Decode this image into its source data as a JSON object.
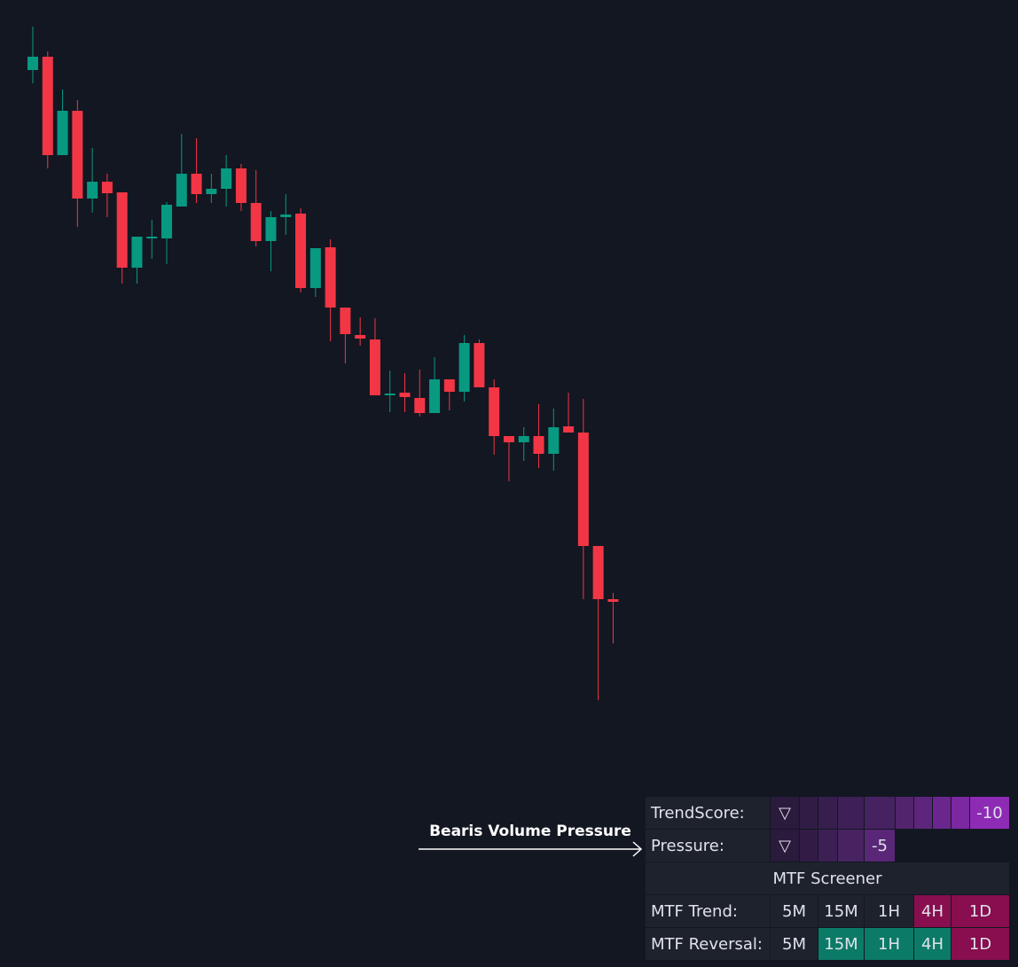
{
  "chart_data": {
    "type": "candlestick",
    "open": [
      1021,
      1036,
      925,
      975,
      876,
      895,
      883,
      798,
      832,
      831,
      867,
      904,
      881,
      887,
      910,
      871,
      828,
      855,
      859,
      775,
      821,
      753,
      722,
      717,
      654,
      657,
      651,
      634,
      672,
      658,
      713,
      663,
      608,
      601,
      608,
      588,
      619,
      612,
      484,
      424
    ],
    "high": [
      1070,
      1042,
      999,
      987,
      933,
      904,
      883,
      833,
      852,
      872,
      949,
      944,
      904,
      925,
      915,
      908,
      862,
      881,
      865,
      820,
      830,
      753,
      742,
      741,
      682,
      679,
      683,
      697,
      672,
      722,
      717,
      672,
      608,
      618,
      644,
      639,
      657,
      650,
      484,
      431
    ],
    "low": [
      1006,
      910,
      925,
      844,
      860,
      855,
      780,
      780,
      808,
      802,
      867,
      871,
      871,
      867,
      862,
      822,
      794,
      835,
      770,
      765,
      715,
      690,
      710,
      654,
      635,
      635,
      630,
      634,
      637,
      647,
      663,
      587,
      557,
      580,
      572,
      569,
      612,
      424,
      310,
      374
    ],
    "close": [
      1036,
      925,
      975,
      876,
      895,
      882,
      798,
      833,
      833,
      869,
      904,
      881,
      887,
      910,
      871,
      828,
      855,
      858,
      775,
      820,
      753,
      723,
      718,
      654,
      656,
      652,
      634,
      672,
      658,
      713,
      663,
      608,
      601,
      608,
      588,
      618,
      612,
      484,
      424,
      421
    ],
    "up_color": "#089981",
    "down_color": "#f23645",
    "ylim": [
      9,
      1100
    ],
    "annotation": "Bearis Volume Pressure"
  },
  "table": {
    "trend_score": {
      "label": "TrendScore:",
      "symbol": "▽",
      "value": -10
    },
    "pressure": {
      "label": "Pressure:",
      "symbol": "▽",
      "value": -5
    },
    "title": "MTF Screener",
    "rows": [
      [
        "MTF Trend:",
        "5M",
        "15M",
        "1H",
        "4H",
        "1D"
      ],
      [
        "MTF Reversal:",
        "5M",
        "15M",
        "1H",
        "4H",
        "1D"
      ]
    ],
    "cell_colors": [
      [
        "#1e222d",
        "#1e222d",
        "#1e222d",
        "#1e222d",
        "#880e4f",
        "#880e4f"
      ],
      [
        "#1e222d",
        "#1e222d",
        "#0b7a66",
        "#0b7a66",
        "#0b7a66",
        "#880e4f"
      ]
    ]
  }
}
